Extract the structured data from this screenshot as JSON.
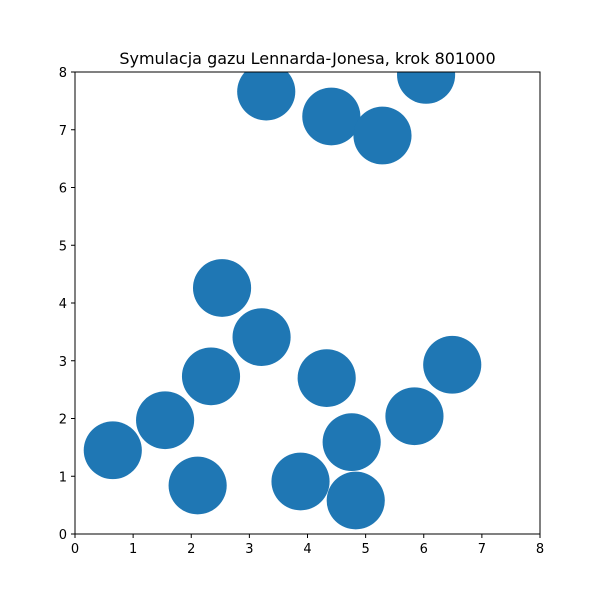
{
  "chart_data": {
    "type": "scatter",
    "title": "Symulacja gazu Lennarda-Jonesa, krok 801000",
    "xlabel": "",
    "ylabel": "",
    "xlim": [
      0,
      8
    ],
    "ylim": [
      0,
      8
    ],
    "xticks": [
      "0",
      "1",
      "2",
      "3",
      "4",
      "5",
      "6",
      "7",
      "8"
    ],
    "yticks": [
      "0",
      "1",
      "2",
      "3",
      "4",
      "5",
      "6",
      "7",
      "8"
    ],
    "grid": false,
    "marker_color": "#1f77b4",
    "marker_diameter": 1.0,
    "points": [
      {
        "x": 3.29,
        "y": 7.66
      },
      {
        "x": 4.41,
        "y": 7.23
      },
      {
        "x": 5.29,
        "y": 6.9
      },
      {
        "x": 6.04,
        "y": 7.95
      },
      {
        "x": 2.53,
        "y": 4.26
      },
      {
        "x": 3.21,
        "y": 3.41
      },
      {
        "x": 2.34,
        "y": 2.73
      },
      {
        "x": 4.33,
        "y": 2.7
      },
      {
        "x": 6.49,
        "y": 2.93
      },
      {
        "x": 5.84,
        "y": 2.04
      },
      {
        "x": 1.55,
        "y": 1.97
      },
      {
        "x": 0.65,
        "y": 1.45
      },
      {
        "x": 4.76,
        "y": 1.59
      },
      {
        "x": 2.11,
        "y": 0.84
      },
      {
        "x": 3.88,
        "y": 0.91
      },
      {
        "x": 4.83,
        "y": 0.58
      }
    ]
  }
}
